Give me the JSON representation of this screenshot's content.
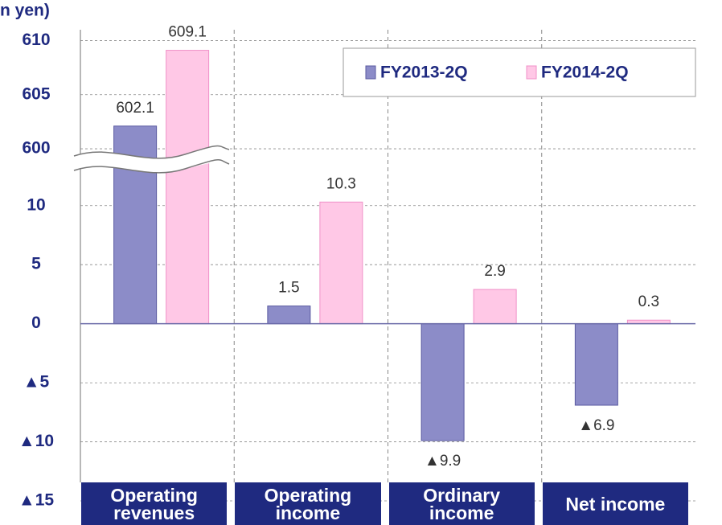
{
  "chart_data": {
    "type": "bar",
    "y_label": "n yen)",
    "categories": [
      "Operating revenues",
      "Operating income",
      "Ordinary income",
      "Net income"
    ],
    "series": [
      {
        "name": "FY2013-2Q",
        "color": "#8c8cc8",
        "values": [
          602.1,
          1.5,
          -9.9,
          -6.9
        ],
        "value_labels": [
          "602.1",
          "1.5",
          "▲9.9",
          "▲6.9"
        ]
      },
      {
        "name": "FY2014-2Q",
        "color": "#ffc8e6",
        "values": [
          609.1,
          10.3,
          2.9,
          0.3
        ],
        "value_labels": [
          "609.1",
          "10.3",
          "2.9",
          "0.3"
        ]
      }
    ],
    "ylim": [
      -15,
      611
    ],
    "axis_break": [
      12.5,
      598
    ],
    "yticks": [
      610,
      605,
      600,
      10,
      5,
      0,
      {
        "value": -5,
        "label": "▲5"
      },
      {
        "value": -10,
        "label": "▲10"
      },
      {
        "value": -15,
        "label": "▲15"
      }
    ],
    "grid": true,
    "legend": "upper right"
  }
}
